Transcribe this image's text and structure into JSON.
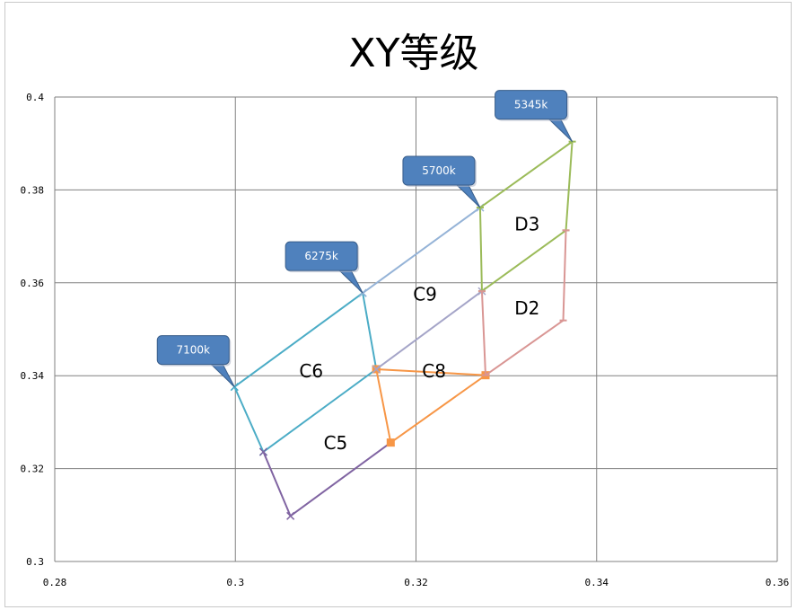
{
  "chart_data": {
    "type": "line",
    "title": "XY等级",
    "xlabel": "",
    "ylabel": "",
    "xlim": [
      0.28,
      0.36
    ],
    "ylim": [
      0.3,
      0.4
    ],
    "xticks": [
      0.28,
      0.3,
      0.32,
      0.34,
      0.36
    ],
    "yticks": [
      0.3,
      0.32,
      0.34,
      0.36,
      0.38,
      0.4
    ],
    "xtick_labels": [
      "0.28",
      "0.3",
      "0.32",
      "0.34",
      "0.36"
    ],
    "ytick_labels": [
      "0.3",
      "0.32",
      "0.34",
      "0.36",
      "0.38",
      "0.4"
    ],
    "grid": true,
    "series": [
      {
        "color": "#4bacc6",
        "marker": "x",
        "points": [
          [
            0.2999,
            0.3376
          ],
          [
            0.3031,
            0.3236
          ],
          [
            0.3156,
            0.3414
          ],
          [
            0.3141,
            0.3578
          ],
          [
            0.2999,
            0.3376
          ],
          [
            0.3031,
            0.3236
          ]
        ]
      },
      {
        "color": "#8064a2",
        "marker": "x",
        "points": [
          [
            0.3031,
            0.3236
          ],
          [
            0.3061,
            0.3098
          ],
          [
            0.3172,
            0.3256
          ]
        ]
      },
      {
        "color": "#f79646",
        "marker": "square",
        "points": [
          [
            0.3156,
            0.3414
          ],
          [
            0.3172,
            0.3256
          ],
          [
            0.3277,
            0.3401
          ],
          [
            0.3156,
            0.3414
          ]
        ]
      },
      {
        "color": "#95b3d7",
        "marker": "x",
        "points": [
          [
            0.3141,
            0.3578
          ],
          [
            0.3271,
            0.3762
          ]
        ]
      },
      {
        "color": "#a5a5c8",
        "marker": "x",
        "points": [
          [
            0.3156,
            0.3414
          ],
          [
            0.3273,
            0.3582
          ]
        ]
      },
      {
        "color": "#9bbb59",
        "marker": "dash",
        "points": [
          [
            0.3271,
            0.3762
          ],
          [
            0.3373,
            0.3904
          ],
          [
            0.3366,
            0.3713
          ],
          [
            0.3273,
            0.3582
          ],
          [
            0.3271,
            0.3762
          ]
        ]
      },
      {
        "color": "#d99694",
        "marker": "dash",
        "points": [
          [
            0.3273,
            0.3582
          ],
          [
            0.3277,
            0.3401
          ],
          [
            0.3363,
            0.3519
          ],
          [
            0.3366,
            0.3713
          ]
        ]
      }
    ],
    "callouts": [
      {
        "label": "7100k",
        "x": 0.2999,
        "y": 0.3376
      },
      {
        "label": "6275k",
        "x": 0.3141,
        "y": 0.3578
      },
      {
        "label": "5700k",
        "x": 0.3271,
        "y": 0.3762
      },
      {
        "label": "5345k",
        "x": 0.3373,
        "y": 0.3904
      }
    ],
    "regions": [
      {
        "label": "C6",
        "x": 0.3084,
        "y": 0.341
      },
      {
        "label": "C5",
        "x": 0.3111,
        "y": 0.3255
      },
      {
        "label": "C9",
        "x": 0.321,
        "y": 0.3575
      },
      {
        "label": "C8",
        "x": 0.322,
        "y": 0.341
      },
      {
        "label": "D3",
        "x": 0.3323,
        "y": 0.3726
      },
      {
        "label": "D2",
        "x": 0.3323,
        "y": 0.3545
      }
    ]
  }
}
